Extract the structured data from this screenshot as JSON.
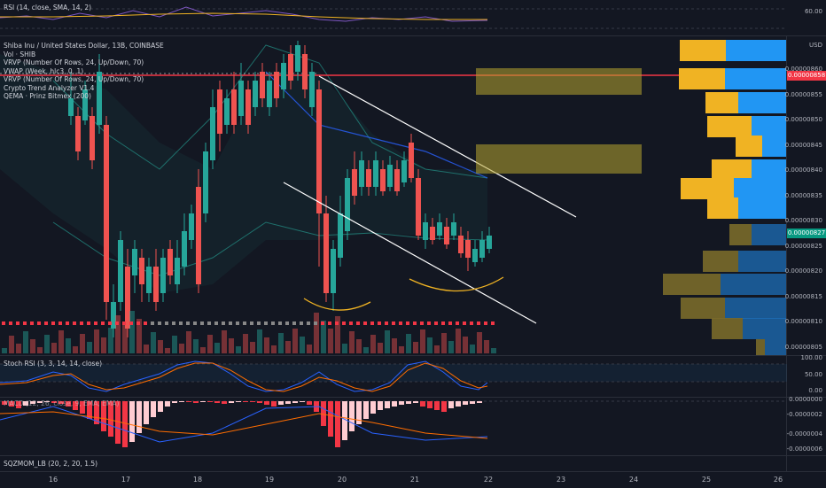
{
  "rsi": {
    "title": "RSI (14, close, SMA, 14, 2)",
    "level": "60.00"
  },
  "main": {
    "legend": [
      "Shiba Inu / United States Dollar, 13B, COINBASE",
      "Vol · SHIB",
      "VRVP (Number Of Rows, 24, Up/Down, 70)",
      "VWAP (Week, hlc3, 0, 1)",
      "VRVP (Number Of Rows, 24, Up/Down, 70)",
      "Crypto Trend Analyzer V1.4",
      "QEMA · Prinz Bitmex (200)"
    ],
    "currency": "USD",
    "price_ticks": [
      "0.00000860",
      "0.00000855",
      "0.00000850",
      "0.00000845",
      "0.00000840",
      "0.00000835",
      "0.00000830",
      "0.00000825",
      "0.00000820",
      "0.00000815",
      "0.00000810",
      "0.00000805"
    ],
    "current_price": "0.00000827",
    "red_price": "0.00000858"
  },
  "stoch": {
    "title": "Stoch RSI (3, 3, 14, 14, close)",
    "ticks": [
      "100.00",
      "50.00",
      "0.00"
    ]
  },
  "macd": {
    "title": "MACD (12, 26, close, 9, EMA, EMA)",
    "ticks": [
      "0.0000000",
      "-0.0000002",
      "-0.0000004",
      "-0.0000006"
    ]
  },
  "sqz": {
    "title": "SQZMOM_LB (20, 2, 20, 1.5)"
  },
  "time_axis": [
    "16",
    "17",
    "18",
    "19",
    "20",
    "21",
    "22",
    "23",
    "24",
    "25",
    "26"
  ],
  "colors": {
    "up": "#26a69a",
    "down": "#ef5350",
    "bg": "#131722",
    "profile_up": "#2196f3",
    "profile_down": "#f0b323"
  }
}
